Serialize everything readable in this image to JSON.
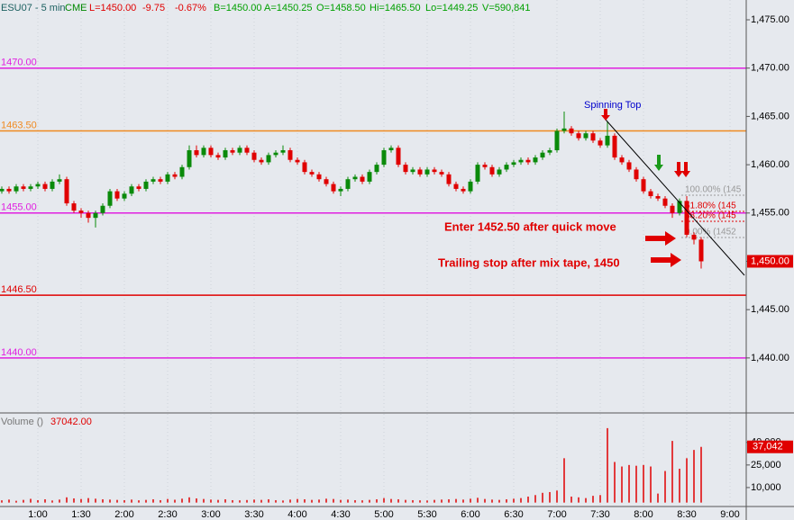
{
  "header": {
    "symbol": "ESU07 - 5 min",
    "exchange": "CME",
    "last": "L=1450.00",
    "change": "-9.75",
    "pct_change": "-0.67%",
    "bid": "B=1450.00",
    "ask": "A=1450.25",
    "open": "O=1458.50",
    "high": "Hi=1465.50",
    "low": "Lo=1449.25",
    "volume": "V=590,841"
  },
  "chart_data": {
    "type": "candlestick",
    "categories": [
      null,
      null,
      null,
      null,
      null,
      "1:00",
      null,
      null,
      null,
      null,
      null,
      "1:30",
      null,
      null,
      null,
      null,
      null,
      "2:00",
      null,
      null,
      null,
      null,
      null,
      "2:30",
      null,
      null,
      null,
      null,
      null,
      "3:00",
      null,
      null,
      null,
      null,
      null,
      "3:30",
      null,
      null,
      null,
      null,
      null,
      "4:00",
      null,
      null,
      null,
      null,
      null,
      "4:30",
      null,
      null,
      null,
      null,
      null,
      "5:00",
      null,
      null,
      null,
      null,
      null,
      "5:30",
      null,
      null,
      null,
      null,
      null,
      "6:00",
      null,
      null,
      null,
      null,
      null,
      "6:30",
      null,
      null,
      null,
      null,
      null,
      "7:00",
      null,
      null,
      null,
      null,
      null,
      "7:30",
      null,
      null,
      null,
      null,
      null,
      "8:00",
      null,
      null,
      null,
      null,
      null,
      "8:30",
      null,
      null,
      null,
      null,
      null,
      "9:00"
    ],
    "open": [
      1457.25,
      1457.5,
      1457.25,
      1457.75,
      1457.5,
      1457.75,
      1458,
      1457.5,
      1458.25,
      1458.5,
      1456,
      1455.25,
      1455,
      1454.5,
      1455,
      1455.75,
      1457.25,
      1456.5,
      1457,
      1457.75,
      1457.5,
      1458.25,
      1458.5,
      1458.25,
      1459,
      1458.75,
      1459.75,
      1461.5,
      1461,
      1461.75,
      1461,
      1460.75,
      1461.5,
      1461.25,
      1461.75,
      1461.25,
      1460.5,
      1460.25,
      1461,
      1461.25,
      1461.5,
      1460.5,
      1460.25,
      1459.25,
      1459,
      1458.5,
      1458,
      1457.25,
      1457.5,
      1458.5,
      1458.75,
      1458.25,
      1459.25,
      1460,
      1461.5,
      1461.75,
      1460,
      1459.25,
      1459.5,
      1459,
      1459.5,
      1459.25,
      1459,
      1458,
      1457.5,
      1457.25,
      1458.25,
      1460,
      1459.75,
      1459,
      1459.5,
      1460,
      1460.25,
      1460.5,
      1460.25,
      1460.75,
      1461.25,
      1461.5,
      1463.5,
      1463.75,
      1463.25,
      1462.75,
      1463.25,
      1462.5,
      1462,
      1463,
      1460.75,
      1460.25,
      1459.5,
      1458.5,
      1457.25,
      1456.75,
      1456.5,
      1455.75,
      1455,
      1456.25,
      1452.75,
      1452.25,
      null,
      null,
      null,
      null
    ],
    "high": [
      1457.75,
      1457.75,
      1458,
      1458,
      1458,
      1458.25,
      1458.25,
      1458.5,
      1459,
      1458.75,
      1456.25,
      1455.5,
      1455.25,
      1455.25,
      1456,
      1457.5,
      1457.5,
      1457.25,
      1458,
      1458,
      1458.5,
      1458.75,
      1458.75,
      1459.25,
      1459.25,
      1460,
      1462,
      1462,
      1462,
      1462,
      1461.25,
      1461.75,
      1461.75,
      1462,
      1462,
      1461.5,
      1460.75,
      1461.25,
      1461.5,
      1462,
      1461.75,
      1460.75,
      1460.5,
      1459.5,
      1459.25,
      1458.75,
      1458.25,
      1457.75,
      1458.75,
      1459,
      1459,
      1459.5,
      1460.25,
      1461.75,
      1462,
      1462,
      1460.25,
      1459.75,
      1459.75,
      1459.75,
      1459.75,
      1459.5,
      1459.25,
      1458.25,
      1457.75,
      1458.5,
      1460.25,
      1460.25,
      1460,
      1459.75,
      1460.25,
      1460.5,
      1460.75,
      1460.75,
      1461,
      1461.5,
      1461.75,
      1463.75,
      1465.5,
      1464,
      1463.5,
      1463.5,
      1463.5,
      1462.75,
      1464.5,
      1463.25,
      1461,
      1460.5,
      1459.75,
      1458.75,
      1457.5,
      1457,
      1456.75,
      1456,
      1456.5,
      1456.75,
      1453,
      1452.5,
      null,
      null,
      null,
      null
    ],
    "low": [
      1457,
      1457,
      1457,
      1457.25,
      1457.25,
      1457.5,
      1457.25,
      1457.25,
      1458,
      1455.75,
      1455,
      1454.5,
      1454,
      1453.5,
      1454.75,
      1455.5,
      1456.25,
      1456.25,
      1456.75,
      1457.25,
      1457.25,
      1458,
      1458,
      1458,
      1458.5,
      1458.5,
      1459.5,
      1460.75,
      1460.75,
      1460.75,
      1460.5,
      1460.5,
      1461,
      1461,
      1461,
      1460.25,
      1460,
      1460,
      1460.75,
      1461,
      1460.25,
      1460,
      1459,
      1458.75,
      1458.25,
      1457.75,
      1457,
      1456.75,
      1457.25,
      1458.25,
      1458,
      1458,
      1459,
      1459.75,
      1461.25,
      1459.75,
      1459,
      1459,
      1458.75,
      1458.75,
      1459,
      1458.75,
      1457.75,
      1457.25,
      1457,
      1457,
      1458,
      1459.5,
      1458.75,
      1458.75,
      1459.25,
      1459.75,
      1460,
      1460,
      1460,
      1460.5,
      1461,
      1461.25,
      1463.25,
      1463,
      1462.5,
      1462.5,
      1462.25,
      1461.75,
      1461.75,
      1460.5,
      1460,
      1459.25,
      1458.25,
      1457,
      1456.5,
      1456.25,
      1455.5,
      1454.5,
      1454.75,
      1452.5,
      1451.75,
      1449.25,
      null,
      null,
      null,
      null
    ],
    "close": [
      1457.5,
      1457.25,
      1457.75,
      1457.5,
      1457.75,
      1458,
      1457.5,
      1458.25,
      1458.5,
      1456,
      1455.25,
      1455,
      1454.5,
      1455,
      1455.75,
      1457.25,
      1456.5,
      1457,
      1457.75,
      1457.5,
      1458.25,
      1458.5,
      1458.25,
      1459,
      1458.75,
      1459.75,
      1461.5,
      1461,
      1461.75,
      1461,
      1460.75,
      1461.5,
      1461.25,
      1461.75,
      1461.25,
      1460.5,
      1460.25,
      1461,
      1461.25,
      1461.5,
      1460.5,
      1460.25,
      1459.25,
      1459,
      1458.5,
      1458,
      1457.25,
      1457.5,
      1458.5,
      1458.75,
      1458.25,
      1459.25,
      1460,
      1461.5,
      1461.75,
      1460,
      1459.25,
      1459.5,
      1459,
      1459.5,
      1459.25,
      1459,
      1458,
      1457.5,
      1457.25,
      1458.25,
      1460,
      1459.75,
      1459,
      1459.5,
      1460,
      1460.25,
      1460.5,
      1460.25,
      1460.75,
      1461.25,
      1461.5,
      1463.5,
      1463.75,
      1463.25,
      1462.75,
      1463.25,
      1462.5,
      1462,
      1463,
      1460.75,
      1460.25,
      1459.5,
      1458.5,
      1457.25,
      1456.75,
      1456.5,
      1455.75,
      1455,
      1456.25,
      1452.75,
      1452.25,
      1450,
      null,
      null,
      null,
      null
    ],
    "colors": {
      "up": "#0a8a0a",
      "down": "#e00000"
    },
    "ylim": [
      1434.4,
      1477.05
    ],
    "yticks": [
      {
        "value": 1475,
        "label": "1,475.00"
      },
      {
        "value": 1470,
        "label": "1,470.00"
      },
      {
        "value": 1465,
        "label": "1,465.00"
      },
      {
        "value": 1460,
        "label": "1,460.00"
      },
      {
        "value": 1455,
        "label": "1,455.00"
      },
      {
        "value": 1450,
        "label": "1,450.00"
      },
      {
        "value": 1445,
        "label": "1,445.00"
      },
      {
        "value": 1440,
        "label": "1,440.00"
      }
    ],
    "last_price": {
      "value": 1450,
      "label": "1,450.00"
    },
    "levels": [
      {
        "value": 1470,
        "label": "1470.00",
        "color": "#e020e0"
      },
      {
        "value": 1463.5,
        "label": "1463.50",
        "color": "#f08a20"
      },
      {
        "value": 1455,
        "label": "1455.00",
        "color": "#e020e0"
      },
      {
        "value": 1446.5,
        "label": "1446.50",
        "color": "#e00000"
      },
      {
        "value": 1440,
        "label": "1440.00",
        "color": "#e020e0"
      }
    ],
    "annotations": [
      "Spinning Top",
      "Enter 1452.50 after quick move",
      "Trailing stop after mix tape, 1450"
    ],
    "fib_labels": [
      "100.00% (145",
      "61.80% (145",
      "38.20% (145",
      "0.00% (1452"
    ],
    "volume": {
      "title": "Volume ()",
      "last_value": {
        "value": 37042,
        "label": "37042.00"
      },
      "color": "#e00000",
      "values": [
        1500,
        2000,
        1200,
        1800,
        2500,
        1600,
        2200,
        1400,
        2000,
        3500,
        2800,
        2400,
        3000,
        2600,
        2200,
        2000,
        1800,
        1600,
        2000,
        1500,
        1800,
        2200,
        1600,
        2400,
        1900,
        2600,
        3500,
        2800,
        2400,
        2000,
        1800,
        2200,
        1600,
        1500,
        1700,
        2000,
        1800,
        2200,
        1600,
        1400,
        2000,
        2400,
        2200,
        1800,
        2000,
        2600,
        2400,
        1800,
        2000,
        1600,
        1500,
        1800,
        2200,
        3000,
        2400,
        2200,
        1800,
        1600,
        1500,
        1400,
        1800,
        2000,
        2200,
        2400,
        2000,
        2600,
        3200,
        2400,
        2000,
        1800,
        2200,
        2600,
        3000,
        4000,
        5000,
        6500,
        7000,
        8000,
        29500,
        4000,
        3500,
        3000,
        4500,
        5000,
        49500,
        27000,
        24000,
        25000,
        24500,
        25000,
        24000,
        6000,
        21000,
        41000,
        22500,
        29500,
        35000,
        37042,
        null,
        null,
        null,
        null
      ],
      "ylim": [
        -2000,
        59000
      ],
      "yticks": [
        {
          "value": 10000,
          "label": "10,000"
        },
        {
          "value": 25000,
          "label": "25,000"
        },
        {
          "value": 40000,
          "label": "40,000"
        }
      ],
      "last": {
        "value": 37042,
        "label": "37,042"
      }
    }
  }
}
